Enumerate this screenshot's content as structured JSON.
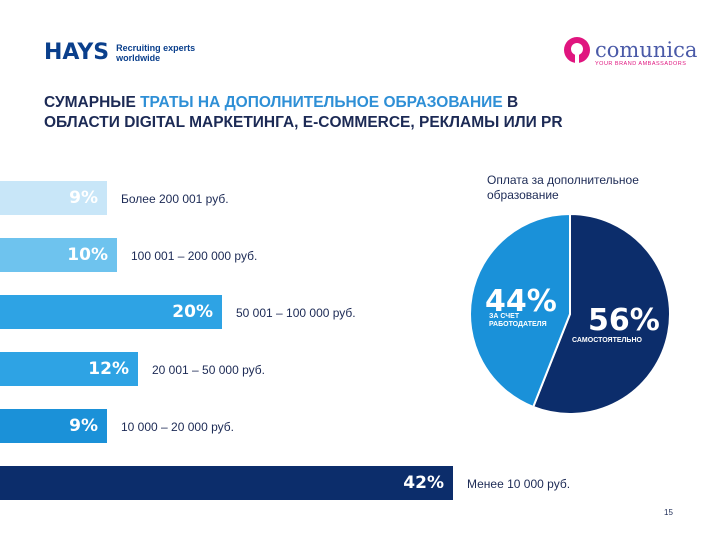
{
  "header": {
    "hays_logo_text": "HAYS",
    "hays_tagline_line1": "Recruiting experts",
    "hays_tagline_line2": "worldwide",
    "comunica_logo_text": "comunica",
    "comunica_tagline": "YOUR BRAND AMBASSADORS"
  },
  "title": {
    "part1": "Сумарные ",
    "part2": "траты на дополнительное образование",
    "part3": " в области Digital маркетинга, E-commerce, рекламы или PR"
  },
  "colors": {
    "navy": "#0c2d6b",
    "light": "#c8e6f8",
    "mid": "#6ec3ee",
    "blue": "#2ea3e4",
    "bright": "#1b91d8",
    "pie_blue": "#1a91d9",
    "pie_navy": "#0c2d6b"
  },
  "chart_data": [
    {
      "type": "bar",
      "orientation": "horizontal",
      "title": "Сумарные траты на дополнительное образование в области Digital маркетинга, E-commerce, рекламы или PR",
      "categories": [
        "Более 200 001 руб.",
        "100 001 – 200 000 руб.",
        "50 001 – 100 000 руб.",
        "20 001 – 50 000 руб.",
        "10 000 – 20 000 руб.",
        "Менее 10 000 руб."
      ],
      "values": [
        9,
        10,
        20,
        12,
        9,
        42
      ],
      "value_labels": [
        "9%",
        "10%",
        "20%",
        "12%",
        "9%",
        "42%"
      ],
      "bar_colors": [
        "#c8e6f8",
        "#6ec3ee",
        "#2ea3e4",
        "#2ea3e4",
        "#1b91d8",
        "#0c2d6b"
      ],
      "unit": "%"
    },
    {
      "type": "pie",
      "title": "Оплата за дополнительное образование",
      "slices": [
        {
          "label": "за счет работодателя",
          "value": 44,
          "display": "44%",
          "color": "#1a91d9"
        },
        {
          "label": "самостоятельно",
          "value": 56,
          "display": "56%",
          "color": "#0c2d6b"
        }
      ]
    }
  ],
  "footer": {
    "page_number": "15"
  }
}
